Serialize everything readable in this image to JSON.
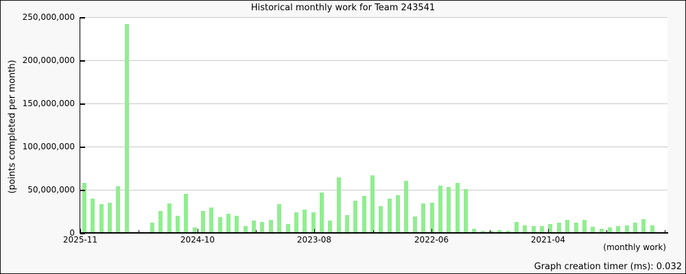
{
  "title": "Historical monthly work for Team 243541",
  "y_axis": {
    "label": "(points completed per month)",
    "ticks": [
      "250,000,000",
      "200,000,000",
      "150,000,000",
      "100,000,000",
      "50,000,000",
      "0"
    ]
  },
  "x_axis": {
    "label": "(monthly work)",
    "ticks": [
      "2025-11",
      "2024-10",
      "2023-08",
      "2022-06",
      "2021-04"
    ]
  },
  "footer": {
    "timer": "Graph creation timer (ms): 0.032"
  },
  "colors": {
    "bar": "#90ee90",
    "background": "#f8f8f8",
    "plot_background": "#ffffff",
    "gridline": "#c9c9c9",
    "axis": "#000000"
  },
  "chart_data": {
    "type": "bar",
    "title": "Historical monthly work for Team 243541",
    "xlabel": "(monthly work)",
    "ylabel": "(points completed per month)",
    "ylim": [
      0,
      250000000
    ],
    "y_tick_interval": 50000000,
    "grid": "horizontal",
    "legend": "none",
    "bar_color": "#90ee90",
    "x_tick_labels": [
      "2025-11",
      "2024-10",
      "2023-08",
      "2022-06",
      "2021-04"
    ],
    "x": [
      "2025-11",
      "2025-10",
      "2025-09",
      "2025-08",
      "2025-07",
      "2025-06",
      "2025-05",
      "2025-04",
      "2025-03",
      "2025-02",
      "2025-01",
      "2024-12",
      "2024-11",
      "2024-10",
      "2024-09",
      "2024-08",
      "2024-07",
      "2024-06",
      "2024-05",
      "2024-04",
      "2024-03",
      "2024-02",
      "2024-01",
      "2023-12",
      "2023-11",
      "2023-10",
      "2023-09",
      "2023-08",
      "2023-07",
      "2023-06",
      "2023-05",
      "2023-04",
      "2023-03",
      "2023-02",
      "2023-01",
      "2022-12",
      "2022-11",
      "2022-10",
      "2022-09",
      "2022-08",
      "2022-07",
      "2022-06",
      "2022-05",
      "2022-04",
      "2022-03",
      "2022-02",
      "2022-01",
      "2021-12",
      "2021-11",
      "2021-10",
      "2021-09",
      "2021-08",
      "2021-07",
      "2021-06",
      "2021-05",
      "2021-04",
      "2021-03",
      "2021-02",
      "2021-01",
      "2020-12",
      "2020-11",
      "2020-10",
      "2020-09",
      "2020-08",
      "2020-07",
      "2020-06",
      "2020-05",
      "2020-04"
    ],
    "values": [
      58000000,
      40000000,
      33000000,
      35000000,
      54000000,
      242000000,
      0,
      0,
      12000000,
      25000000,
      34000000,
      20000000,
      45000000,
      6000000,
      25000000,
      29000000,
      18000000,
      22000000,
      20000000,
      8000000,
      14000000,
      13000000,
      15000000,
      33000000,
      10000000,
      24000000,
      27000000,
      24000000,
      47000000,
      14000000,
      64000000,
      21000000,
      37000000,
      43000000,
      67000000,
      31000000,
      40000000,
      44000000,
      60000000,
      19000000,
      34000000,
      35000000,
      55000000,
      53000000,
      58000000,
      51000000,
      5000000,
      2000000,
      2000000,
      3000000,
      2000000,
      13000000,
      9000000,
      8000000,
      8000000,
      10000000,
      12000000,
      15000000,
      12000000,
      15000000,
      7000000,
      5000000,
      6000000,
      8000000,
      9000000,
      12000000,
      16000000,
      9000000
    ]
  }
}
